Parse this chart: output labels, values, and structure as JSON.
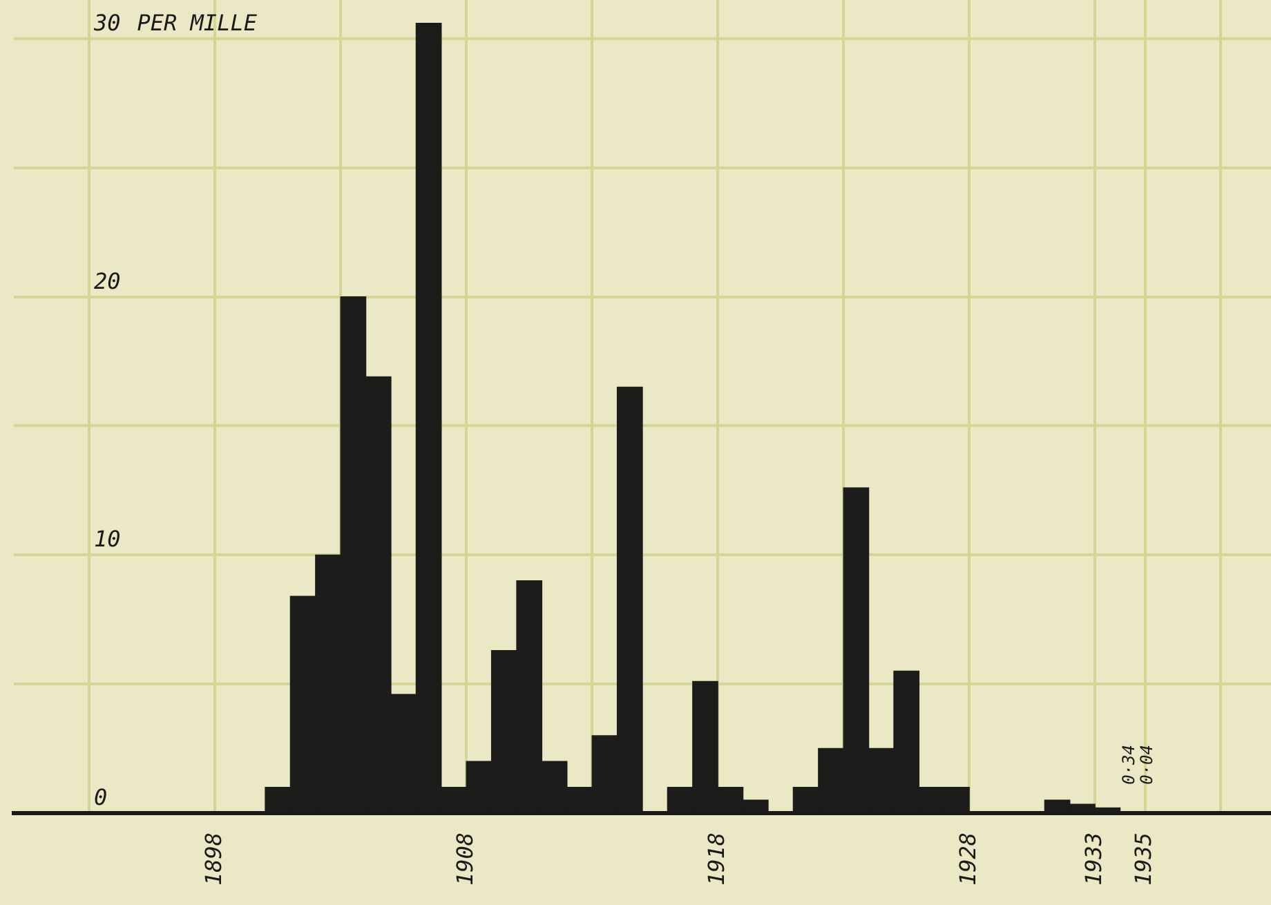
{
  "chart_data": {
    "type": "histogram",
    "ylabel": "PER MILLE",
    "bins": [
      1900,
      1901,
      1902,
      1903,
      1904,
      1905,
      1906,
      1907,
      1908,
      1909,
      1910,
      1911,
      1912,
      1913,
      1914,
      1915,
      1916,
      1917,
      1918,
      1919,
      1920,
      1921,
      1922,
      1923,
      1924,
      1925,
      1926,
      1927,
      1928,
      1929,
      1930,
      1931,
      1932,
      1933,
      1934,
      1935
    ],
    "values": [
      1.0,
      8.4,
      10,
      20,
      16.9,
      4.6,
      30.6,
      1.0,
      2.0,
      6.3,
      9.0,
      2.0,
      1.0,
      3.0,
      16.5,
      0,
      1.0,
      5.1,
      1.0,
      0.5,
      0,
      1.0,
      2.5,
      12.6,
      2.5,
      5.5,
      1.0,
      1.0,
      0,
      0,
      0,
      0.5,
      0.34,
      0.2,
      0.04
    ],
    "color": "#1c1c1a",
    "xlim": [
      1890,
      1940
    ],
    "xticks": [
      {
        "value": 1893,
        "label": null
      },
      1898,
      {
        "value": 1903,
        "label": null
      },
      1908,
      {
        "value": 1913,
        "label": null
      },
      1918,
      {
        "value": 1923,
        "label": null
      },
      1928,
      1933,
      1935,
      {
        "value": 1938,
        "label": null
      }
    ],
    "ylim": [
      0,
      31.5
    ],
    "yticks": [
      0,
      {
        "value": 5,
        "label": null
      },
      10,
      {
        "value": 15,
        "label": null
      },
      20,
      {
        "value": 25,
        "label": null
      },
      30
    ],
    "annotations": [
      "0·34",
      "0·04"
    ],
    "grid": true,
    "legend": false
  }
}
